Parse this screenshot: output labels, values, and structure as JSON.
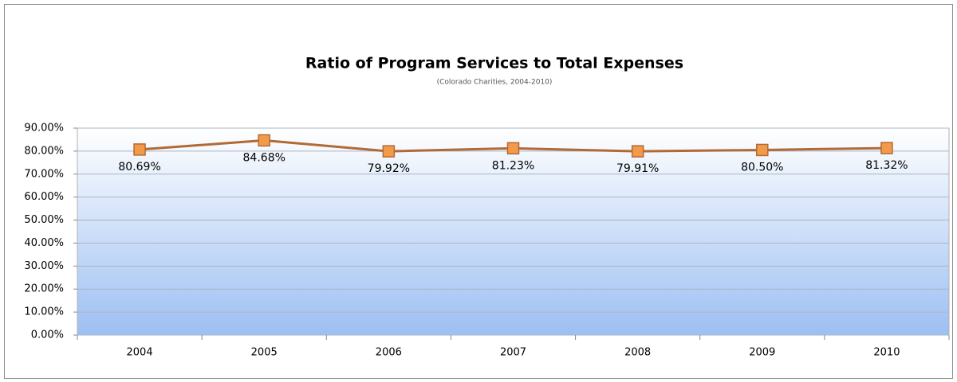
{
  "chart_data": {
    "type": "line",
    "title": "Ratio of Program Services to Total Expenses",
    "subtitle": "(Colorado Charities, 2004-2010)",
    "categories": [
      "2004",
      "2005",
      "2006",
      "2007",
      "2008",
      "2009",
      "2010"
    ],
    "values": [
      80.69,
      84.68,
      79.92,
      81.23,
      79.91,
      80.5,
      81.32
    ],
    "value_labels": [
      "80.69%",
      "84.68%",
      "79.92%",
      "81.23%",
      "79.91%",
      "80.50%",
      "81.32%"
    ],
    "color": "#b26a35",
    "marker_color": "#f39a4a",
    "ylim": [
      0,
      90
    ],
    "yticks": [
      {
        "value": 0,
        "label": "0.00%"
      },
      {
        "value": 10,
        "label": "10.00%"
      },
      {
        "value": 20,
        "label": "20.00%"
      },
      {
        "value": 30,
        "label": "30.00%"
      },
      {
        "value": 40,
        "label": "40.00%"
      },
      {
        "value": 50,
        "label": "50.00%"
      },
      {
        "value": 60,
        "label": "60.00%"
      },
      {
        "value": 70,
        "label": "70.00%"
      },
      {
        "value": 80,
        "label": "80.00%"
      },
      {
        "value": 90,
        "label": "90.00%"
      }
    ],
    "grid": true
  }
}
